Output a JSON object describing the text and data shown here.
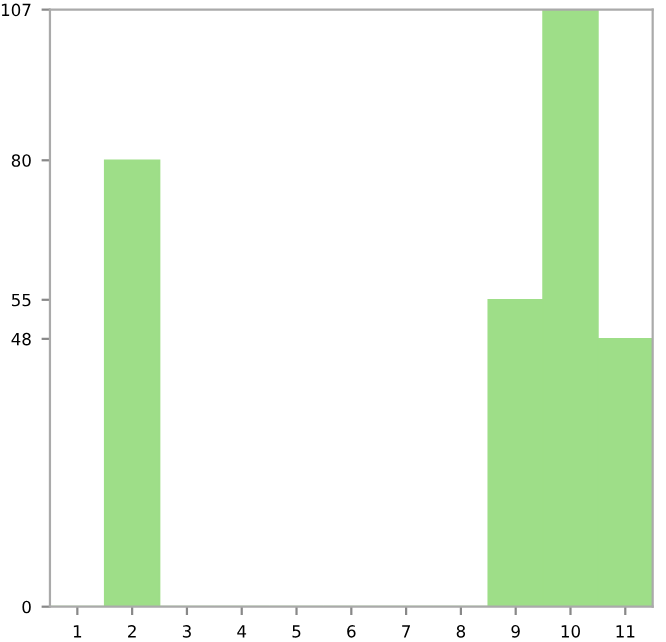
{
  "chart_data": {
    "type": "bar",
    "categories": [
      "1",
      "2",
      "3",
      "4",
      "5",
      "6",
      "7",
      "8",
      "9",
      "10",
      "11"
    ],
    "values": [
      0,
      80,
      0,
      0,
      0,
      0,
      0,
      0,
      55,
      107,
      48
    ],
    "color": "#9ede88",
    "ylim": [
      0,
      107
    ],
    "yticks": [
      0,
      48,
      55,
      80,
      107
    ],
    "grid": false,
    "legend": false
  }
}
